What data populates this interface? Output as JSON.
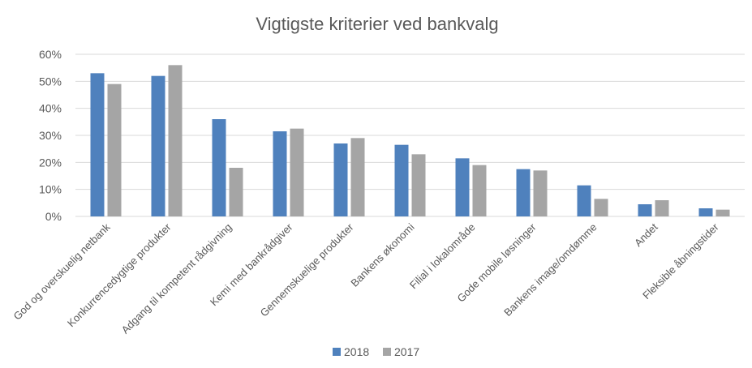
{
  "chart_data": {
    "type": "bar",
    "title": "Vigtigste kriterier ved bankvalg",
    "categories": [
      "God og overskuelig netbank",
      "Konkurrencedygtige produkter",
      "Adgang til kompetent rådgivning",
      "Kemi med bankrådgiver",
      "Gennemskuelige produkter",
      "Bankens økonomi",
      "Filial i lokalområde",
      "Gode mobile løsninger",
      "Bankens image/omdømme",
      "Andet",
      "Fleksible åbningstider"
    ],
    "series": [
      {
        "name": "2018",
        "color": "#4f81bd",
        "values": [
          53,
          52,
          36,
          31.5,
          27,
          26.5,
          21.5,
          17.5,
          11.5,
          4.5,
          3
        ]
      },
      {
        "name": "2017",
        "color": "#a5a5a5",
        "values": [
          49,
          56,
          18,
          32.5,
          29,
          23,
          19,
          17,
          6.5,
          6,
          2.5
        ]
      }
    ],
    "y_ticks": [
      "0%",
      "10%",
      "20%",
      "30%",
      "40%",
      "50%",
      "60%"
    ],
    "ylim": [
      0,
      60
    ],
    "grid": true,
    "legend_position": "bottom"
  }
}
